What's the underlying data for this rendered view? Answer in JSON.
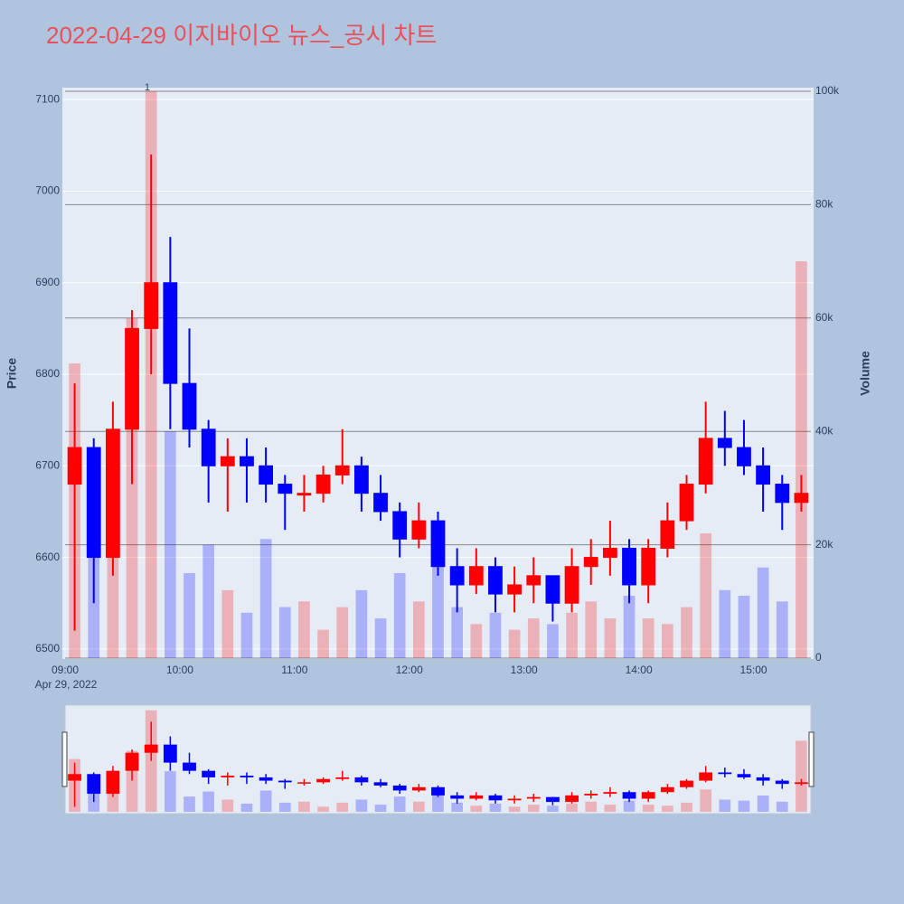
{
  "chart_data": {
    "type": "candlestick",
    "title": "2022-04-29 이지바이오 뉴스_공시 차트",
    "ylabel": "Price",
    "y2label": "Volume",
    "date_label": "Apr 29, 2022",
    "increasing_color": "#ff0000",
    "decreasing_color": "#0000ff",
    "x": [
      "09:00",
      "09:10",
      "09:20",
      "09:30",
      "09:40",
      "09:50",
      "10:00",
      "10:10",
      "10:20",
      "10:30",
      "10:40",
      "10:50",
      "11:00",
      "11:10",
      "11:20",
      "11:30",
      "11:40",
      "11:50",
      "12:00",
      "12:10",
      "12:20",
      "12:30",
      "12:40",
      "12:50",
      "13:00",
      "13:10",
      "13:20",
      "13:30",
      "13:40",
      "13:50",
      "14:00",
      "14:10",
      "14:20",
      "14:30",
      "14:40",
      "14:50",
      "15:00",
      "15:10",
      "15:20"
    ],
    "open": [
      6680,
      6720,
      6600,
      6740,
      6850,
      6900,
      6790,
      6740,
      6700,
      6710,
      6700,
      6680,
      6670,
      6670,
      6690,
      6700,
      6670,
      6650,
      6620,
      6640,
      6590,
      6570,
      6590,
      6560,
      6570,
      6580,
      6550,
      6590,
      6600,
      6610,
      6570,
      6610,
      6640,
      6680,
      6730,
      6720,
      6700,
      6680,
      6660
    ],
    "high": [
      6790,
      6730,
      6770,
      6870,
      7040,
      6950,
      6850,
      6750,
      6730,
      6730,
      6720,
      6690,
      6690,
      6700,
      6740,
      6710,
      6690,
      6660,
      6660,
      6650,
      6610,
      6610,
      6600,
      6590,
      6600,
      6580,
      6610,
      6620,
      6640,
      6620,
      6620,
      6660,
      6690,
      6770,
      6760,
      6750,
      6720,
      6690,
      6690
    ],
    "low": [
      6520,
      6550,
      6580,
      6680,
      6800,
      6740,
      6720,
      6660,
      6650,
      6660,
      6660,
      6630,
      6650,
      6660,
      6680,
      6650,
      6640,
      6600,
      6610,
      6580,
      6540,
      6560,
      6540,
      6540,
      6550,
      6530,
      6540,
      6570,
      6580,
      6550,
      6550,
      6600,
      6630,
      6670,
      6700,
      6690,
      6650,
      6630,
      6650
    ],
    "close": [
      6720,
      6600,
      6740,
      6850,
      6900,
      6790,
      6740,
      6700,
      6710,
      6700,
      6680,
      6670,
      6670,
      6690,
      6700,
      6670,
      6650,
      6620,
      6640,
      6590,
      6570,
      6590,
      6560,
      6570,
      6580,
      6550,
      6590,
      6600,
      6610,
      6570,
      6610,
      6640,
      6680,
      6730,
      6720,
      6700,
      6680,
      6660,
      6670
    ],
    "volume": [
      52000,
      20000,
      38000,
      60000,
      100000,
      40000,
      15000,
      20000,
      12000,
      8000,
      21000,
      9000,
      10000,
      5000,
      9000,
      12000,
      7000,
      15000,
      10000,
      18000,
      9000,
      6000,
      8000,
      5000,
      7000,
      6000,
      8000,
      10000,
      7000,
      11000,
      7000,
      6000,
      9000,
      22000,
      12000,
      11000,
      16000,
      10000,
      70000
    ],
    "annotations": [
      {
        "x": "09:43",
        "text": "1"
      }
    ],
    "xlim": [
      "09:00",
      "15:30"
    ],
    "xticks": [
      "09:00",
      "10:00",
      "11:00",
      "12:00",
      "13:00",
      "14:00",
      "15:00"
    ],
    "ylim": [
      6490,
      7113
    ],
    "yticks": [
      6500,
      6600,
      6700,
      6800,
      6900,
      7000,
      7100
    ],
    "y2lim": [
      0,
      100640
    ],
    "y2ticks": [
      0,
      {
        "value": 20000,
        "label": "20k"
      },
      {
        "value": 40000,
        "label": "40k"
      },
      {
        "value": 60000,
        "label": "60k"
      },
      {
        "value": 80000,
        "label": "80k"
      },
      {
        "value": 100000,
        "label": "100k"
      }
    ]
  }
}
